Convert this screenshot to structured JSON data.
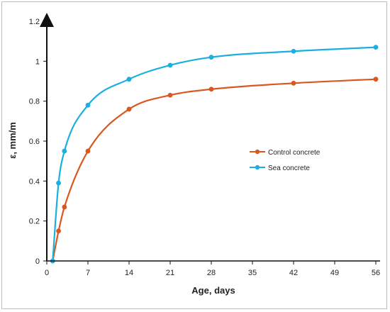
{
  "chart_data": {
    "type": "line",
    "xlabel": "Age, days",
    "ylabel": "ε, mm/m",
    "xlim": [
      0,
      56
    ],
    "ylim": [
      0,
      1.2
    ],
    "xticks": [
      0,
      7,
      14,
      21,
      28,
      35,
      42,
      49,
      56
    ],
    "yticks": [
      0,
      0.2,
      0.4,
      0.6,
      0.8,
      1.0,
      1.2
    ],
    "ytick_labels": [
      "0",
      "0.2",
      "0.4",
      "0.6",
      "0.8",
      "1",
      "1.2"
    ],
    "grid": false,
    "legend_position": "right-middle",
    "series": [
      {
        "name": "Control concrete",
        "color": "#D9581F",
        "x": [
          1,
          2,
          3,
          7,
          14,
          21,
          28,
          42,
          56
        ],
        "y": [
          0.0,
          0.15,
          0.27,
          0.55,
          0.76,
          0.83,
          0.86,
          0.89,
          0.91
        ]
      },
      {
        "name": "Sea concrete",
        "color": "#1AAFE0",
        "x": [
          1,
          2,
          3,
          7,
          14,
          21,
          28,
          42,
          56
        ],
        "y": [
          0.0,
          0.39,
          0.55,
          0.78,
          0.91,
          0.98,
          1.02,
          1.05,
          1.07
        ]
      }
    ]
  }
}
